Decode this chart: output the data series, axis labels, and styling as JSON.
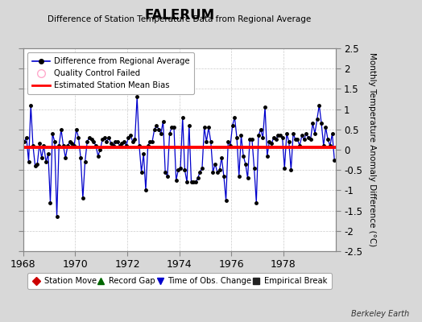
{
  "title": "FALERUM",
  "subtitle": "Difference of Station Temperature Data from Regional Average",
  "ylabel": "Monthly Temperature Anomaly Difference (°C)",
  "xlim": [
    1968.0,
    1980.0
  ],
  "ylim": [
    -2.5,
    2.5
  ],
  "yticks": [
    -2.5,
    -2,
    -1.5,
    -1,
    -0.5,
    0,
    0.5,
    1,
    1.5,
    2,
    2.5
  ],
  "xticks": [
    1968,
    1970,
    1972,
    1974,
    1976,
    1978
  ],
  "bias_value": 0.05,
  "bg_color": "#d8d8d8",
  "plot_bg_color": "#ffffff",
  "line_color": "#0000cc",
  "bias_color": "#ff0000",
  "marker_color": "#000000",
  "watermark": "Berkeley Earth",
  "data_x": [
    1968.0417,
    1968.125,
    1968.2083,
    1968.2917,
    1968.375,
    1968.4583,
    1968.5417,
    1968.625,
    1968.7083,
    1968.7917,
    1968.875,
    1968.9583,
    1969.0417,
    1969.125,
    1969.2083,
    1969.2917,
    1969.375,
    1969.4583,
    1969.5417,
    1969.625,
    1969.7083,
    1969.7917,
    1969.875,
    1969.9583,
    1970.0417,
    1970.125,
    1970.2083,
    1970.2917,
    1970.375,
    1970.4583,
    1970.5417,
    1970.625,
    1970.7083,
    1970.7917,
    1970.875,
    1970.9583,
    1971.0417,
    1971.125,
    1971.2083,
    1971.2917,
    1971.375,
    1971.4583,
    1971.5417,
    1971.625,
    1971.7083,
    1971.7917,
    1971.875,
    1971.9583,
    1972.0417,
    1972.125,
    1972.2083,
    1972.2917,
    1972.375,
    1972.4583,
    1972.5417,
    1972.625,
    1972.7083,
    1972.7917,
    1972.875,
    1972.9583,
    1973.0417,
    1973.125,
    1973.2083,
    1973.2917,
    1973.375,
    1973.4583,
    1973.5417,
    1973.625,
    1973.7083,
    1973.7917,
    1973.875,
    1973.9583,
    1974.0417,
    1974.125,
    1974.2083,
    1974.2917,
    1974.375,
    1974.4583,
    1974.5417,
    1974.625,
    1974.7083,
    1974.7917,
    1974.875,
    1974.9583,
    1975.0417,
    1975.125,
    1975.2083,
    1975.2917,
    1975.375,
    1975.4583,
    1975.5417,
    1975.625,
    1975.7083,
    1975.7917,
    1975.875,
    1975.9583,
    1976.0417,
    1976.125,
    1976.2083,
    1976.2917,
    1976.375,
    1976.4583,
    1976.5417,
    1976.625,
    1976.7083,
    1976.7917,
    1976.875,
    1976.9583,
    1977.0417,
    1977.125,
    1977.2083,
    1977.2917,
    1977.375,
    1977.4583,
    1977.5417,
    1977.625,
    1977.7083,
    1977.7917,
    1977.875,
    1977.9583,
    1978.0417,
    1978.125,
    1978.2083,
    1978.2917,
    1978.375,
    1978.4583,
    1978.5417,
    1978.625,
    1978.7083,
    1978.7917,
    1978.875,
    1978.9583,
    1979.0417,
    1979.125,
    1979.2083,
    1979.2917,
    1979.375,
    1979.4583,
    1979.5417,
    1979.625,
    1979.7083,
    1979.7917,
    1979.875,
    1979.9583
  ],
  "data_y": [
    0.2,
    0.3,
    -0.3,
    1.1,
    0.1,
    -0.4,
    -0.35,
    0.15,
    -0.2,
    0.1,
    -0.3,
    -0.1,
    -1.3,
    0.4,
    0.2,
    -1.65,
    0.1,
    0.5,
    0.1,
    -0.2,
    0.1,
    0.2,
    0.15,
    0.1,
    0.5,
    0.3,
    -0.2,
    -1.2,
    -0.3,
    0.2,
    0.3,
    0.25,
    0.2,
    0.1,
    -0.15,
    0.0,
    0.25,
    0.3,
    0.2,
    0.3,
    0.15,
    0.1,
    0.2,
    0.2,
    0.1,
    0.15,
    0.2,
    0.1,
    0.3,
    0.35,
    0.2,
    0.25,
    1.3,
    0.1,
    -0.55,
    -0.1,
    -1.0,
    0.1,
    0.2,
    0.2,
    0.5,
    0.6,
    0.5,
    0.4,
    0.7,
    -0.55,
    -0.65,
    0.4,
    0.55,
    0.55,
    -0.75,
    -0.5,
    -0.45,
    0.8,
    -0.5,
    -0.8,
    0.6,
    -0.8,
    -0.8,
    -0.8,
    -0.7,
    -0.55,
    -0.45,
    0.55,
    0.2,
    0.55,
    0.2,
    -0.55,
    -0.35,
    -0.55,
    -0.5,
    -0.2,
    -0.65,
    -1.25,
    0.2,
    0.1,
    0.6,
    0.8,
    0.3,
    -0.65,
    0.35,
    -0.15,
    -0.35,
    -0.7,
    0.25,
    0.25,
    -0.45,
    -1.3,
    0.35,
    0.5,
    0.3,
    1.05,
    -0.15,
    0.2,
    0.15,
    0.3,
    0.25,
    0.35,
    0.35,
    0.3,
    -0.45,
    0.4,
    0.2,
    -0.5,
    0.4,
    0.25,
    0.25,
    0.1,
    0.35,
    0.25,
    0.4,
    0.3,
    0.25,
    0.65,
    0.4,
    0.75,
    1.1,
    0.65,
    0.1,
    0.55,
    0.25,
    0.1,
    0.4,
    -0.25
  ]
}
